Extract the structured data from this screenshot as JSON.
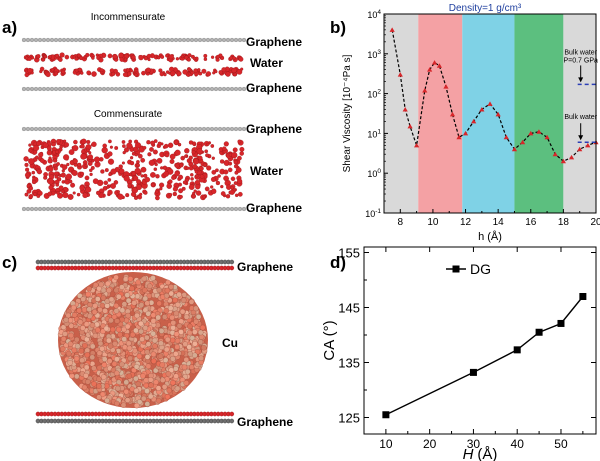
{
  "panels": {
    "a": {
      "label": "a)",
      "incommensurate": {
        "title": "Incommensurate",
        "top": "Graphene",
        "water": "Water",
        "bottom": "Graphene"
      },
      "commensurate": {
        "title": "Commensurate",
        "top": "Graphene",
        "water": "Water",
        "bottom": "Graphene"
      }
    },
    "b": {
      "label": "b)"
    },
    "c": {
      "label": "c)",
      "top": "Graphene",
      "cu": "Cu",
      "bottom": "Graphene"
    },
    "d": {
      "label": "d)"
    }
  },
  "colors": {
    "water_red": "#d7262a",
    "graphene_gray": "#b5b5b5",
    "cu_salmon": "#df7a64",
    "band_gray": "#d9d9d9",
    "band_pink": "#f4a1a4",
    "band_cyan": "#7fd2e6",
    "band_green": "#5cbf7f",
    "density_blue": "#1f3f9f",
    "bulk_dash": "#2b3fb5"
  },
  "chart_data": [
    {
      "panel": "b",
      "type": "line",
      "title": "Density=1 g/cm³",
      "xlabel": "h (Å)",
      "ylabel": "Shear Viscosity [10⁻⁴Pa s]",
      "xlim": [
        7,
        20
      ],
      "ylim_log10": [
        -1,
        4
      ],
      "x_ticks": [
        8,
        10,
        12,
        14,
        16,
        18,
        20
      ],
      "x_tick_labels": [
        "8",
        "10",
        "12",
        "14",
        "16",
        "18",
        "20"
      ],
      "y_ticks_log10": [
        -1,
        0,
        1,
        2,
        3,
        4
      ],
      "y_tick_labels": [
        "10-1",
        "100",
        "101",
        "102",
        "103",
        "104"
      ],
      "bands": [
        {
          "from": 7,
          "to": 9.1,
          "color": "#d9d9d9"
        },
        {
          "from": 9.1,
          "to": 11.8,
          "color": "#f4a1a4"
        },
        {
          "from": 11.8,
          "to": 15.0,
          "color": "#7fd2e6"
        },
        {
          "from": 15.0,
          "to": 18.0,
          "color": "#5cbf7f"
        },
        {
          "from": 18.0,
          "to": 20,
          "color": "#d9d9d9"
        }
      ],
      "series": [
        {
          "name": "viscosity",
          "x": [
            7.5,
            8.0,
            8.3,
            8.6,
            9.0,
            9.5,
            9.8,
            10.1,
            10.4,
            10.8,
            11.2,
            11.6,
            12.0,
            12.5,
            13.0,
            13.5,
            14.0,
            14.5,
            15.0,
            15.5,
            16.0,
            16.5,
            17.0,
            17.5,
            18.0,
            18.5,
            19.0,
            19.5,
            20.0
          ],
          "y": [
            4000,
            300,
            40,
            15,
            5,
            120,
            400,
            600,
            500,
            150,
            30,
            8,
            10,
            20,
            40,
            55,
            30,
            8,
            4,
            6,
            10,
            11,
            8,
            3,
            2,
            2.5,
            4,
            5,
            6
          ]
        }
      ],
      "annotations": [
        {
          "text": "Bulk water",
          "text2": "P=0.7 GPa",
          "x": 19.0,
          "y": 170
        },
        {
          "text": "Bulk water",
          "text2": "",
          "x": 19.0,
          "y": 6
        }
      ],
      "reference_lines": [
        {
          "x_from": 19.0,
          "x_to": 20,
          "y": 170
        },
        {
          "x_from": 19.0,
          "x_to": 20,
          "y": 6
        }
      ]
    },
    {
      "panel": "d",
      "type": "line",
      "title": "",
      "xlabel": "H",
      "xlabel_unit": "(Å)",
      "ylabel": "CA (°)",
      "xlim": [
        5,
        58
      ],
      "ylim": [
        122,
        156
      ],
      "x_ticks": [
        10,
        20,
        30,
        40,
        50
      ],
      "x_tick_labels": [
        "10",
        "20",
        "30",
        "40",
        "50"
      ],
      "y_ticks": [
        125,
        135,
        145,
        155
      ],
      "y_tick_labels": [
        "125",
        "135",
        "145",
        "155"
      ],
      "legend": {
        "label": "DG",
        "position": "top-left"
      },
      "series": [
        {
          "name": "DG",
          "x": [
            10,
            30,
            40,
            45,
            50,
            55
          ],
          "y": [
            125.5,
            133.2,
            137.3,
            140.5,
            142.1,
            147.0
          ]
        }
      ]
    }
  ]
}
